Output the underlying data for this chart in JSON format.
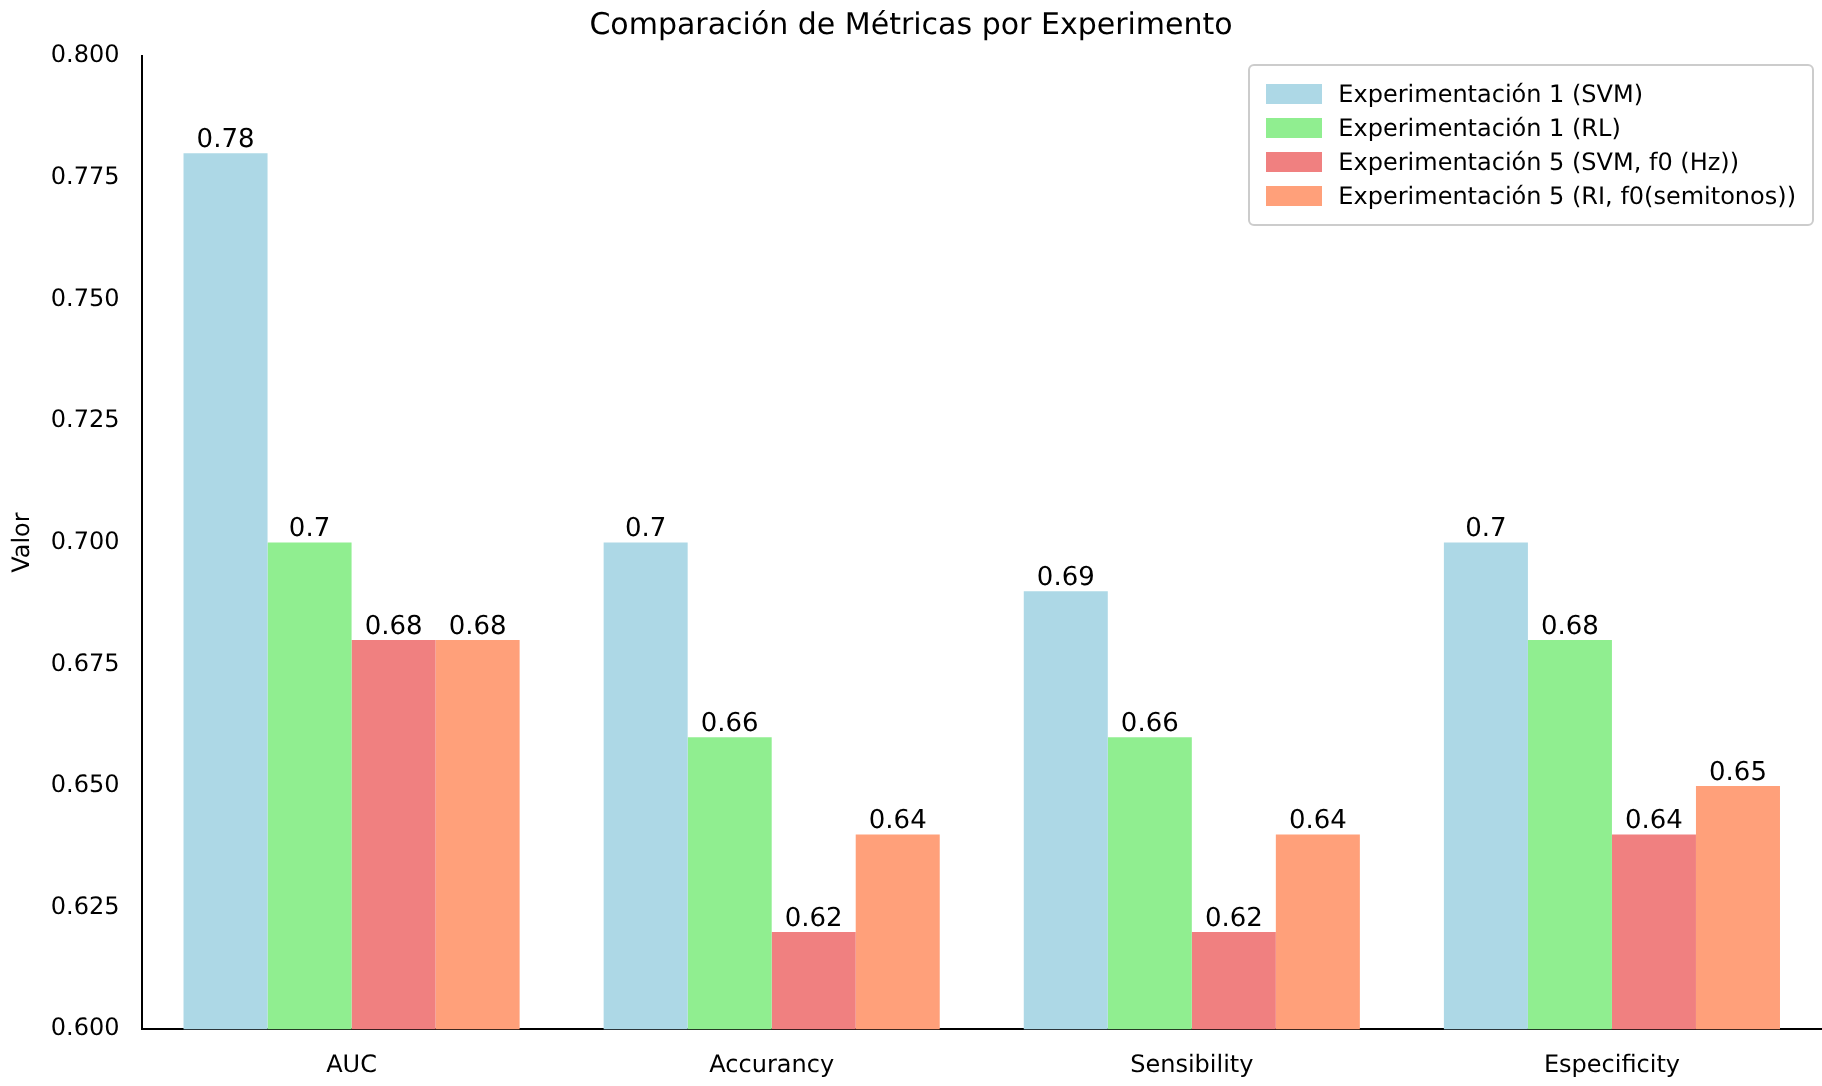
{
  "chart_data": {
    "type": "bar",
    "title": "Comparación de Métricas por Experimento",
    "ylabel": "Valor",
    "categories": [
      "AUC",
      "Accurancy",
      "Sensibility",
      "Especificity"
    ],
    "series": [
      {
        "name": "Experimentación 1 (SVM)",
        "color": "#add8e6",
        "values": [
          0.78,
          0.7,
          0.69,
          0.7
        ]
      },
      {
        "name": "Experimentación 1 (RL)",
        "color": "#90ee90",
        "values": [
          0.7,
          0.66,
          0.66,
          0.68
        ]
      },
      {
        "name": "Experimentación 5 (SVM, f0 (Hz))",
        "color": "#f08080",
        "values": [
          0.68,
          0.62,
          0.62,
          0.64
        ]
      },
      {
        "name": "Experimentación 5 (RI, f0(semitonos))",
        "color": "#ffa07a",
        "values": [
          0.68,
          0.64,
          0.64,
          0.65
        ]
      }
    ],
    "ylim": [
      0.6,
      0.8
    ],
    "yticks": [
      {
        "value": 0.6,
        "label": "0.600"
      },
      {
        "value": 0.625,
        "label": "0.625"
      },
      {
        "value": 0.65,
        "label": "0.650"
      },
      {
        "value": 0.675,
        "label": "0.675"
      },
      {
        "value": 0.7,
        "label": "0.700"
      },
      {
        "value": 0.725,
        "label": "0.725"
      },
      {
        "value": 0.75,
        "label": "0.750"
      },
      {
        "value": 0.775,
        "label": "0.775"
      },
      {
        "value": 0.8,
        "label": "0.800"
      }
    ],
    "grid": false,
    "legend": "top right",
    "data_labels": true
  }
}
